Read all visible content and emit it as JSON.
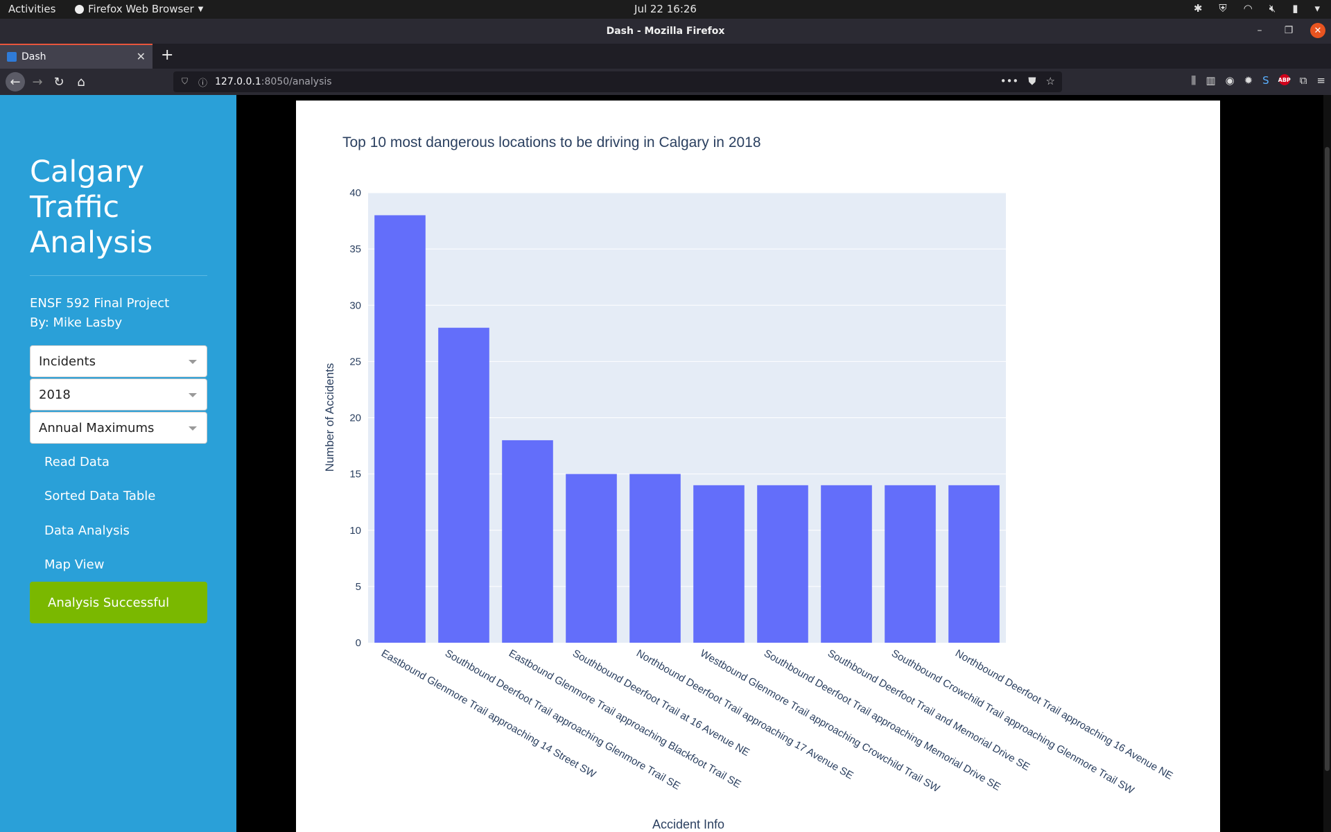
{
  "os_bar": {
    "activities": "Activities",
    "app_name": "Firefox Web Browser",
    "clock": "Jul 22  16:26"
  },
  "window": {
    "title": "Dash - Mozilla Firefox"
  },
  "browser": {
    "tab_title": "Dash",
    "url_host": "127.0.0.1",
    "url_rest": ":8050/analysis",
    "abp_label": "ABP"
  },
  "sidebar": {
    "title": "Calgary Traffic Analysis",
    "subtitle_line1": "ENSF 592 Final Project",
    "subtitle_line2": "By: Mike Lasby",
    "dropdowns": [
      {
        "value": "Incidents"
      },
      {
        "value": "2018"
      },
      {
        "value": "Annual Maximums"
      }
    ],
    "links": [
      "Read Data",
      "Sorted Data Table",
      "Data Analysis",
      "Map View"
    ],
    "status": "Analysis Successful"
  },
  "colors": {
    "sidebar_bg": "#2aa0d8",
    "status_bg": "#7ab800",
    "bar": "#636efa",
    "plot_bg": "#e5ecf6",
    "text": "#2a3f5f"
  },
  "chart_data": {
    "type": "bar",
    "title": "Top 10 most dangerous locations to be driving in Calgary in 2018",
    "xlabel": "Accident Info",
    "ylabel": "Number of Accidents",
    "ylim": [
      0,
      40
    ],
    "yticks": [
      0,
      5,
      10,
      15,
      20,
      25,
      30,
      35,
      40
    ],
    "grid": true,
    "categories": [
      "Eastbound Glenmore Trail approaching 14 Street SW",
      "Southbound Deerfoot Trail approaching Glenmore Trail SE",
      "Eastbound Glenmore Trail approaching Blackfoot Trail SE",
      "Southbound Deerfoot Trail at 16 Avenue NE",
      "Northbound Deerfoot Trail approaching 17 Avenue SE",
      "Westbound Glenmore Trail approaching Crowchild Trail SW",
      "Southbound Deerfoot Trail approaching Memorial Drive SE",
      "Southbound Deerfoot Trail and Memorial Drive SE",
      "Southbound Crowchild Trail approaching Glenmore Trail SW",
      "Northbound Deerfoot Trail approaching 16 Avenue NE"
    ],
    "values": [
      38,
      28,
      18,
      15,
      15,
      14,
      14,
      14,
      14,
      14
    ]
  }
}
